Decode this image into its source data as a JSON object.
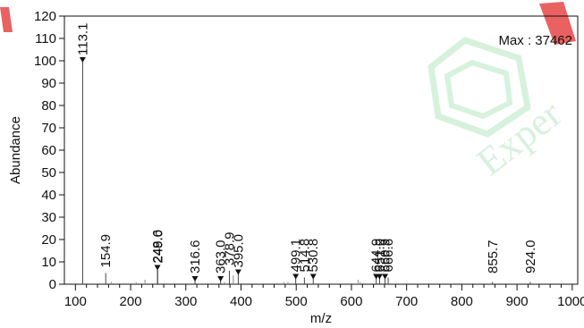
{
  "chart_data": {
    "type": "bar",
    "xlabel": "m/z",
    "ylabel": "Abundance",
    "xlim": [
      80,
      1010
    ],
    "ylim": [
      0,
      120
    ],
    "x_ticks": [
      100,
      200,
      300,
      400,
      500,
      600,
      700,
      800,
      900,
      1000
    ],
    "y_ticks": [
      0,
      10,
      20,
      30,
      40,
      50,
      60,
      70,
      80,
      90,
      100,
      110,
      120
    ],
    "max_label": "Max : 37462",
    "peaks": [
      {
        "mz": 113.1,
        "abundance": 100,
        "label": "113.1",
        "marked": true
      },
      {
        "mz": 154.9,
        "abundance": 5,
        "label": "154.9",
        "marked": false
      },
      {
        "mz": 248.6,
        "abundance": 7,
        "label": "248.6",
        "marked": true
      },
      {
        "mz": 249.0,
        "abundance": 7,
        "label": "249.0",
        "marked": false
      },
      {
        "mz": 316.6,
        "abundance": 2,
        "label": "316.6",
        "marked": true
      },
      {
        "mz": 363.0,
        "abundance": 2,
        "label": "363.0",
        "marked": true
      },
      {
        "mz": 378.9,
        "abundance": 6,
        "label": "378.9",
        "marked": false
      },
      {
        "mz": 395.0,
        "abundance": 5,
        "label": "395.0",
        "marked": true
      },
      {
        "mz": 499.1,
        "abundance": 3,
        "label": "499.1",
        "marked": true
      },
      {
        "mz": 514.8,
        "abundance": 3,
        "label": "514.8",
        "marked": false
      },
      {
        "mz": 530.8,
        "abundance": 3,
        "label": "530.8",
        "marked": true
      },
      {
        "mz": 644.9,
        "abundance": 3,
        "label": "644.9",
        "marked": true
      },
      {
        "mz": 651.0,
        "abundance": 3,
        "label": "651.0",
        "marked": true
      },
      {
        "mz": 660.9,
        "abundance": 3,
        "label": "660.9",
        "marked": true
      },
      {
        "mz": 666.6,
        "abundance": 3,
        "label": "666.6",
        "marked": false
      },
      {
        "mz": 855.7,
        "abundance": 1,
        "label": "855.7",
        "marked": false
      },
      {
        "mz": 924.0,
        "abundance": 1,
        "label": "924.0",
        "marked": false
      }
    ],
    "minor_peaks": [
      {
        "mz": 165,
        "abundance": 1
      },
      {
        "mz": 210,
        "abundance": 1
      },
      {
        "mz": 226,
        "abundance": 2
      },
      {
        "mz": 370,
        "abundance": 1
      },
      {
        "mz": 386,
        "abundance": 4
      },
      {
        "mz": 478,
        "abundance": 1
      },
      {
        "mz": 485,
        "abundance": 1
      },
      {
        "mz": 612,
        "abundance": 2
      },
      {
        "mz": 616,
        "abundance": 1
      }
    ],
    "colors": {
      "peak": "#444444",
      "axis": "#111111",
      "marker": "#111111"
    }
  },
  "watermark": {
    "text": "Exper"
  }
}
